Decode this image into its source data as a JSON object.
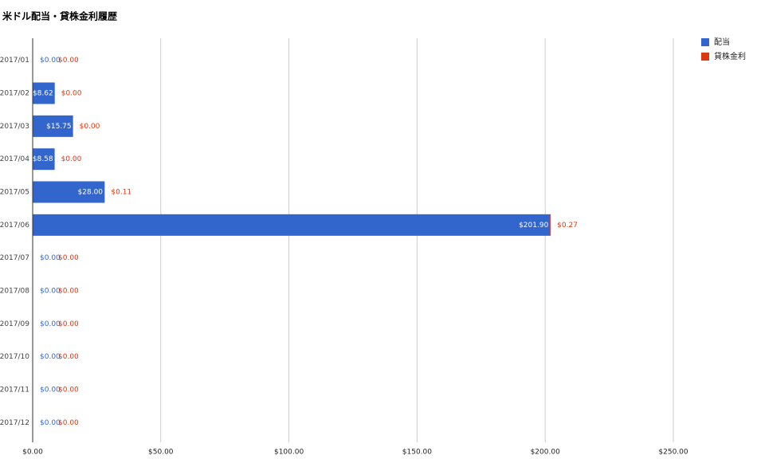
{
  "chart_data": {
    "type": "bar",
    "orientation": "horizontal",
    "stacked": true,
    "title": "米ドル配当・貸株金利履歴",
    "categories": [
      "2017/01",
      "2017/02",
      "2017/03",
      "2017/04",
      "2017/05",
      "2017/06",
      "2017/07",
      "2017/08",
      "2017/09",
      "2017/10",
      "2017/11",
      "2017/12"
    ],
    "series": [
      {
        "name": "配当",
        "color": "#3366cc",
        "values": [
          0,
          8.62,
          15.75,
          8.58,
          28.0,
          201.9,
          0,
          0,
          0,
          0,
          0,
          0
        ],
        "value_labels": [
          "$0.00",
          "$8.62",
          "$15.75",
          "$8.58",
          "$28.00",
          "$201.90",
          "$0.00",
          "$0.00",
          "$0.00",
          "$0.00",
          "$0.00",
          "$0.00"
        ]
      },
      {
        "name": "貸株金利",
        "color": "#dc3912",
        "values": [
          0,
          0,
          0,
          0,
          0.11,
          0.27,
          0,
          0,
          0,
          0,
          0,
          0
        ],
        "value_labels": [
          "$0.00",
          "$0.00",
          "$0.00",
          "$0.00",
          "$0.11",
          "$0.27",
          "$0.00",
          "$0.00",
          "$0.00",
          "$0.00",
          "$0.00",
          "$0.00"
        ]
      }
    ],
    "xlim": [
      0,
      250
    ],
    "xticks": [
      {
        "value": 0,
        "label": "$0.00"
      },
      {
        "value": 50,
        "label": "$50.00"
      },
      {
        "value": 100,
        "label": "$100.00"
      },
      {
        "value": 150,
        "label": "$150.00"
      },
      {
        "value": 200,
        "label": "$200.00"
      },
      {
        "value": 250,
        "label": "$250.00"
      }
    ],
    "grid": true,
    "legend": "right"
  }
}
